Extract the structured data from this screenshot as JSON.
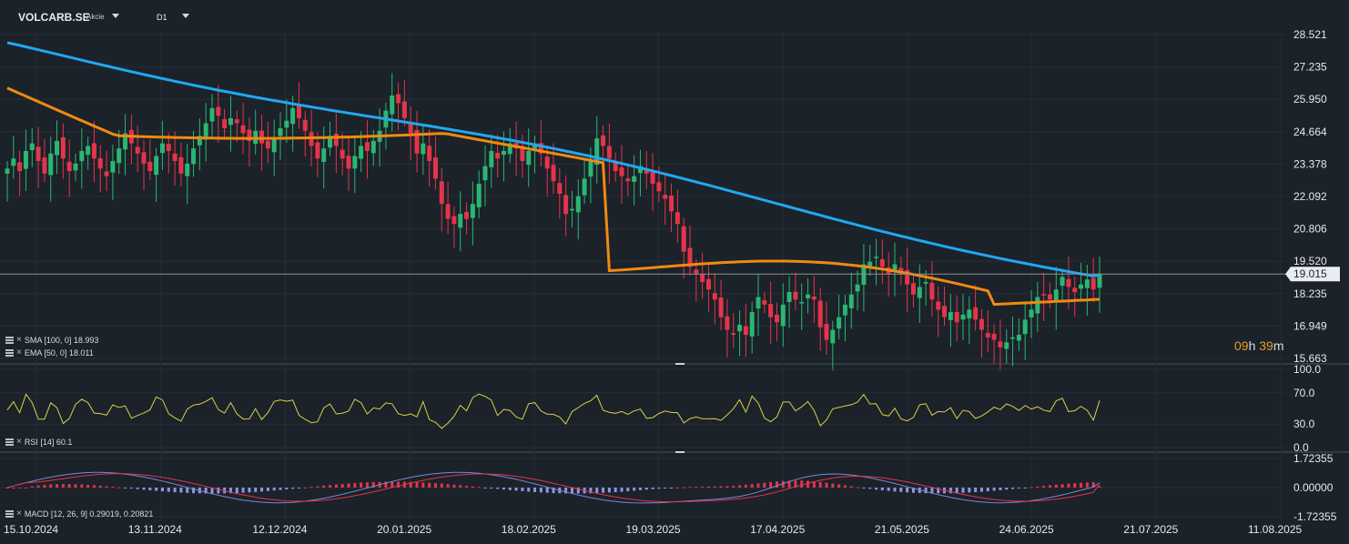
{
  "header": {
    "symbol": "VOLCARB.SE",
    "type": "Akcie",
    "timeframe": "D1"
  },
  "colors": {
    "background": "#1b2229",
    "up_candle": "#2bb673",
    "down_candle": "#e5344a",
    "sma": "#22a8f0",
    "ema": "#f08a10",
    "rsi": "#d9d24a",
    "macd_line": "#7b86d8",
    "signal_line": "#e5344a",
    "hist_pos": "#e5344a",
    "hist_neg": "#8e96e6",
    "countdown": "#e89a2a"
  },
  "indicators": {
    "sma_label": "SMA [100, 0] 18.993",
    "ema_label": "EMA [50, 0] 18.011",
    "rsi_label": "RSI [14] 60.1",
    "macd_label": "MACD [12, 26, 9] 0.29019, 0.20821"
  },
  "countdown": {
    "hours": "09",
    "h_unit": "h",
    "minutes": "39",
    "m_unit": "m"
  },
  "price_axis": {
    "ticks": [
      "28.521",
      "27.235",
      "25.950",
      "24.664",
      "23.378",
      "22.092",
      "20.806",
      "19.520",
      "18.235",
      "16.949",
      "15.663"
    ],
    "current_price": "19.015"
  },
  "rsi_axis": {
    "ticks": [
      "100.0",
      "70.0",
      "30.0",
      "0.0"
    ]
  },
  "macd_axis": {
    "ticks": [
      "1.72355",
      "0.00000",
      "-1.72355"
    ]
  },
  "time_axis": {
    "labels": [
      "15.10.2024",
      "13.11.2024",
      "12.12.2024",
      "20.01.2025",
      "18.02.2025",
      "19.03.2025",
      "17.04.2025",
      "21.05.2025",
      "24.06.2025",
      "21.07.2025",
      "11.08.2025"
    ]
  },
  "chart_data": {
    "type": "candlestick",
    "symbol": "VOLCARB.SE",
    "timeframe": "D1",
    "x_range": [
      "15.10.2024",
      "11.08.2025"
    ],
    "ylim": [
      15.663,
      28.521
    ],
    "current_price": 19.015,
    "close_series": [
      23.2,
      23.6,
      23.1,
      23.9,
      24.2,
      23.5,
      23.0,
      23.8,
      24.3,
      23.6,
      23.1,
      23.4,
      23.9,
      24.1,
      23.6,
      23.2,
      22.9,
      23.5,
      24.0,
      24.6,
      24.2,
      23.8,
      23.4,
      23.1,
      23.7,
      24.2,
      23.9,
      23.5,
      23.0,
      23.4,
      24.0,
      24.5,
      25.0,
      25.6,
      25.3,
      24.8,
      25.2,
      25.0,
      24.6,
      24.3,
      24.7,
      24.2,
      24.0,
      24.4,
      24.8,
      25.1,
      25.6,
      25.2,
      24.7,
      24.1,
      23.6,
      24.0,
      24.5,
      24.1,
      23.6,
      23.2,
      23.7,
      24.1,
      23.9,
      24.3,
      24.7,
      25.5,
      26.1,
      25.8,
      25.2,
      24.6,
      23.8,
      24.2,
      23.5,
      22.8,
      21.8,
      21.2,
      21.0,
      21.4,
      21.2,
      21.8,
      22.6,
      23.3,
      23.9,
      23.6,
      23.9,
      24.2,
      24.0,
      23.5,
      23.9,
      24.2,
      23.8,
      23.2,
      22.7,
      22.2,
      21.4,
      21.6,
      22.1,
      22.8,
      23.5,
      24.4,
      24.1,
      23.6,
      23.1,
      22.9,
      22.7,
      22.9,
      23.3,
      23.0,
      22.6,
      22.3,
      22.0,
      21.5,
      21.0,
      19.9,
      19.3,
      19.0,
      18.7,
      18.4,
      18.0,
      17.3,
      16.8,
      16.6,
      17.0,
      16.6,
      17.5,
      18.1,
      17.8,
      17.3,
      17.1,
      17.8,
      18.3,
      18.0,
      17.9,
      18.2,
      18.0,
      16.9,
      16.4,
      16.8,
      17.3,
      17.8,
      18.2,
      18.6,
      19.4,
      19.5,
      19.7,
      19.3,
      19.0,
      19.4,
      19.1,
      18.6,
      18.2,
      18.5,
      18.7,
      18.0,
      17.6,
      17.3,
      17.5,
      17.1,
      17.4,
      17.6,
      17.2,
      16.8,
      16.5,
      16.4,
      16.1,
      16.3,
      16.5,
      16.6,
      17.2,
      17.6,
      18.1,
      18.2,
      18.0,
      18.4,
      18.9,
      18.5,
      18.3,
      18.6,
      18.8,
      18.4,
      19.0
    ],
    "series": [
      {
        "name": "SMA [100, 0]",
        "last": 18.993
      },
      {
        "name": "EMA [50, 0]",
        "last": 18.011
      },
      {
        "name": "RSI [14]",
        "last": 60.1,
        "ylim": [
          0,
          100
        ]
      },
      {
        "name": "MACD [12, 26, 9]",
        "last_macd": 0.29019,
        "last_signal": 0.20821,
        "ylim": [
          -1.72355,
          1.72355
        ]
      }
    ]
  }
}
